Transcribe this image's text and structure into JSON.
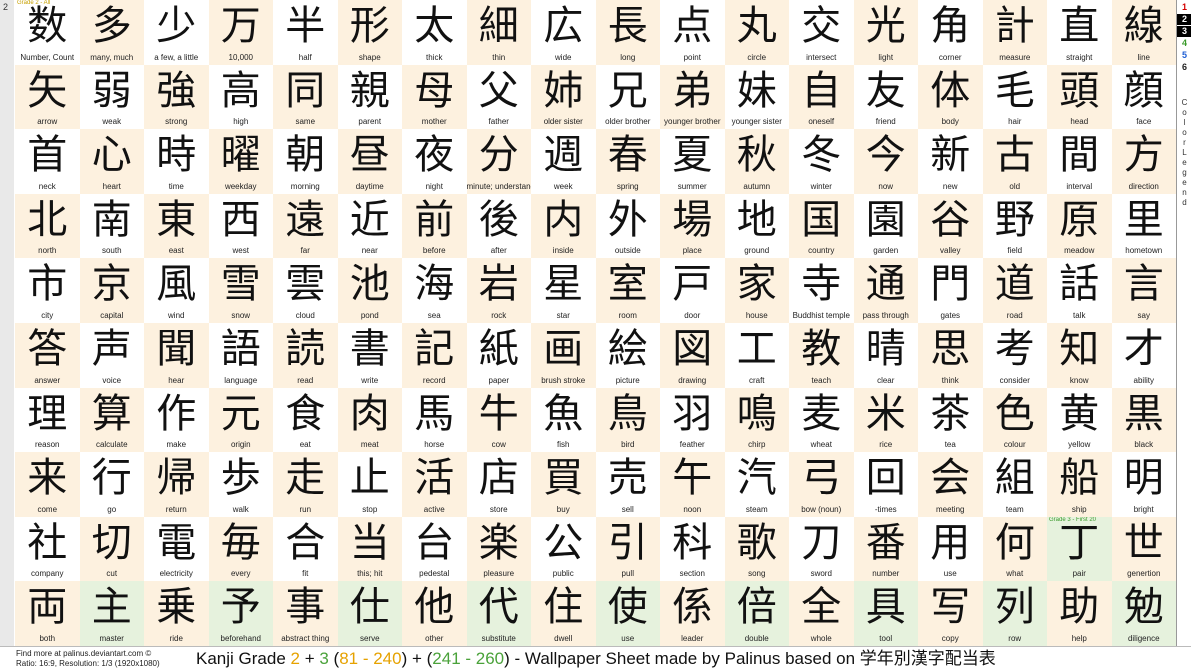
{
  "page_number": "2",
  "legend": {
    "numbers": [
      "1",
      "2",
      "3",
      "4",
      "5",
      "6"
    ],
    "colors": [
      "#d40000",
      "#e08a00",
      "#3a9a2a",
      "#3a9a2a",
      "#1f5fd4",
      "#222222"
    ],
    "label": "Color Legend"
  },
  "tags": {
    "grade2": "Grade 2 - All",
    "grade3": "Grade 3 - First 20"
  },
  "cell_colors": {
    "white": "#ffffff",
    "beige": "#fdf1df",
    "green": "#e6f2dd"
  },
  "rows": [
    [
      [
        "数",
        "Number, Count"
      ],
      [
        "多",
        "many, much"
      ],
      [
        "少",
        "a few, a little"
      ],
      [
        "万",
        "10,000"
      ],
      [
        "半",
        "half"
      ],
      [
        "形",
        "shape"
      ],
      [
        "太",
        "thick"
      ],
      [
        "細",
        "thin"
      ],
      [
        "広",
        "wide"
      ],
      [
        "長",
        "long"
      ],
      [
        "点",
        "point"
      ],
      [
        "丸",
        "circle"
      ],
      [
        "交",
        "intersect"
      ],
      [
        "光",
        "light"
      ],
      [
        "角",
        "corner"
      ],
      [
        "計",
        "measure"
      ],
      [
        "直",
        "straight"
      ],
      [
        "線",
        "line"
      ]
    ],
    [
      [
        "矢",
        "arrow"
      ],
      [
        "弱",
        "weak"
      ],
      [
        "強",
        "strong"
      ],
      [
        "高",
        "high"
      ],
      [
        "同",
        "same"
      ],
      [
        "親",
        "parent"
      ],
      [
        "母",
        "mother"
      ],
      [
        "父",
        "father"
      ],
      [
        "姉",
        "older sister"
      ],
      [
        "兄",
        "older brother"
      ],
      [
        "弟",
        "younger brother"
      ],
      [
        "妹",
        "younger sister"
      ],
      [
        "自",
        "oneself"
      ],
      [
        "友",
        "friend"
      ],
      [
        "体",
        "body"
      ],
      [
        "毛",
        "hair"
      ],
      [
        "頭",
        "head"
      ],
      [
        "顔",
        "face"
      ]
    ],
    [
      [
        "首",
        "neck"
      ],
      [
        "心",
        "heart"
      ],
      [
        "時",
        "time"
      ],
      [
        "曜",
        "weekday"
      ],
      [
        "朝",
        "morning"
      ],
      [
        "昼",
        "daytime"
      ],
      [
        "夜",
        "night"
      ],
      [
        "分",
        "minute; understand"
      ],
      [
        "週",
        "week"
      ],
      [
        "春",
        "spring"
      ],
      [
        "夏",
        "summer"
      ],
      [
        "秋",
        "autumn"
      ],
      [
        "冬",
        "winter"
      ],
      [
        "今",
        "now"
      ],
      [
        "新",
        "new"
      ],
      [
        "古",
        "old"
      ],
      [
        "間",
        "interval"
      ],
      [
        "方",
        "direction"
      ]
    ],
    [
      [
        "北",
        "north"
      ],
      [
        "南",
        "south"
      ],
      [
        "東",
        "east"
      ],
      [
        "西",
        "west"
      ],
      [
        "遠",
        "far"
      ],
      [
        "近",
        "near"
      ],
      [
        "前",
        "before"
      ],
      [
        "後",
        "after"
      ],
      [
        "内",
        "inside"
      ],
      [
        "外",
        "outside"
      ],
      [
        "場",
        "place"
      ],
      [
        "地",
        "ground"
      ],
      [
        "国",
        "country"
      ],
      [
        "園",
        "garden"
      ],
      [
        "谷",
        "valley"
      ],
      [
        "野",
        "field"
      ],
      [
        "原",
        "meadow"
      ],
      [
        "里",
        "hometown"
      ]
    ],
    [
      [
        "市",
        "city"
      ],
      [
        "京",
        "capital"
      ],
      [
        "風",
        "wind"
      ],
      [
        "雪",
        "snow"
      ],
      [
        "雲",
        "cloud"
      ],
      [
        "池",
        "pond"
      ],
      [
        "海",
        "sea"
      ],
      [
        "岩",
        "rock"
      ],
      [
        "星",
        "star"
      ],
      [
        "室",
        "room"
      ],
      [
        "戸",
        "door"
      ],
      [
        "家",
        "house"
      ],
      [
        "寺",
        "Buddhist temple"
      ],
      [
        "通",
        "pass through"
      ],
      [
        "門",
        "gates"
      ],
      [
        "道",
        "road"
      ],
      [
        "話",
        "talk"
      ],
      [
        "言",
        "say"
      ]
    ],
    [
      [
        "答",
        "answer"
      ],
      [
        "声",
        "voice"
      ],
      [
        "聞",
        "hear"
      ],
      [
        "語",
        "language"
      ],
      [
        "読",
        "read"
      ],
      [
        "書",
        "write"
      ],
      [
        "記",
        "record"
      ],
      [
        "紙",
        "paper"
      ],
      [
        "画",
        "brush stroke"
      ],
      [
        "絵",
        "picture"
      ],
      [
        "図",
        "drawing"
      ],
      [
        "工",
        "craft"
      ],
      [
        "教",
        "teach"
      ],
      [
        "晴",
        "clear"
      ],
      [
        "思",
        "think"
      ],
      [
        "考",
        "consider"
      ],
      [
        "知",
        "know"
      ],
      [
        "才",
        "ability"
      ]
    ],
    [
      [
        "理",
        "reason"
      ],
      [
        "算",
        "calculate"
      ],
      [
        "作",
        "make"
      ],
      [
        "元",
        "origin"
      ],
      [
        "食",
        "eat"
      ],
      [
        "肉",
        "meat"
      ],
      [
        "馬",
        "horse"
      ],
      [
        "牛",
        "cow"
      ],
      [
        "魚",
        "fish"
      ],
      [
        "鳥",
        "bird"
      ],
      [
        "羽",
        "feather"
      ],
      [
        "鳴",
        "chirp"
      ],
      [
        "麦",
        "wheat"
      ],
      [
        "米",
        "rice"
      ],
      [
        "茶",
        "tea"
      ],
      [
        "色",
        "colour"
      ],
      [
        "黄",
        "yellow"
      ],
      [
        "黒",
        "black"
      ]
    ],
    [
      [
        "来",
        "come"
      ],
      [
        "行",
        "go"
      ],
      [
        "帰",
        "return"
      ],
      [
        "歩",
        "walk"
      ],
      [
        "走",
        "run"
      ],
      [
        "止",
        "stop"
      ],
      [
        "活",
        "active"
      ],
      [
        "店",
        "store"
      ],
      [
        "買",
        "buy"
      ],
      [
        "売",
        "sell"
      ],
      [
        "午",
        "noon"
      ],
      [
        "汽",
        "steam"
      ],
      [
        "弓",
        "bow (noun)"
      ],
      [
        "回",
        "-times"
      ],
      [
        "会",
        "meeting"
      ],
      [
        "組",
        "team"
      ],
      [
        "船",
        "ship"
      ],
      [
        "明",
        "bright"
      ]
    ],
    [
      [
        "社",
        "company"
      ],
      [
        "切",
        "cut"
      ],
      [
        "電",
        "electricity"
      ],
      [
        "毎",
        "every"
      ],
      [
        "合",
        "fit"
      ],
      [
        "当",
        "this; hit"
      ],
      [
        "台",
        "pedestal"
      ],
      [
        "楽",
        "pleasure"
      ],
      [
        "公",
        "public"
      ],
      [
        "引",
        "pull"
      ],
      [
        "科",
        "section"
      ],
      [
        "歌",
        "song"
      ],
      [
        "刀",
        "sword"
      ],
      [
        "番",
        "number"
      ],
      [
        "用",
        "use"
      ],
      [
        "何",
        "what"
      ],
      [
        "丁",
        "pair"
      ],
      [
        "世",
        "genertion"
      ]
    ],
    [
      [
        "両",
        "both"
      ],
      [
        "主",
        "master"
      ],
      [
        "乗",
        "ride"
      ],
      [
        "予",
        "beforehand"
      ],
      [
        "事",
        "abstract thing"
      ],
      [
        "仕",
        "serve"
      ],
      [
        "他",
        "other"
      ],
      [
        "代",
        "substitute"
      ],
      [
        "住",
        "dwell"
      ],
      [
        "使",
        "use"
      ],
      [
        "係",
        "leader"
      ],
      [
        "倍",
        "double"
      ],
      [
        "全",
        "whole"
      ],
      [
        "具",
        "tool"
      ],
      [
        "写",
        "copy"
      ],
      [
        "列",
        "row"
      ],
      [
        "助",
        "help"
      ],
      [
        "勉",
        "diligence"
      ]
    ]
  ],
  "footer": {
    "line1": "Find more at palinus.deviantart.com ©",
    "line2": "Ratio: 16:9,  Resolution: 1/3 (1920x1080)",
    "title_a": "Kanji Grade ",
    "grade_a": "2",
    "plus1": " + ",
    "grade_b": "3",
    "open1": " (",
    "range_a": "81 - 240",
    "mid": ") + (",
    "range_b": "241 - 260",
    "title_b": ") - Wallpaper Sheet made by Palinus based on ",
    "title_jp": "学年別漢字配当表"
  }
}
